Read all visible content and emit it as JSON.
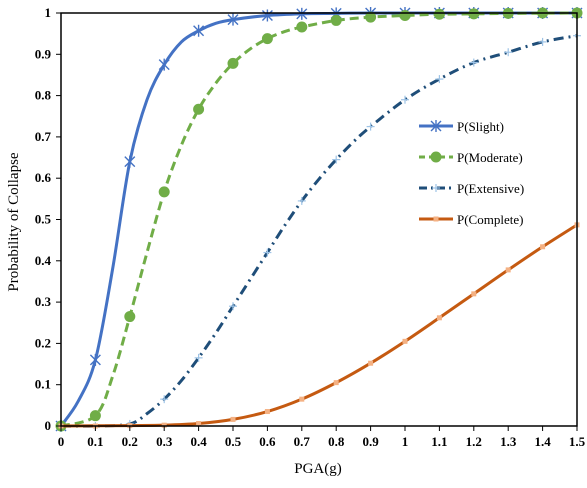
{
  "chart_data": {
    "type": "line",
    "title": "",
    "xlabel": "PGA(g)",
    "ylabel": "Probability of Collapse",
    "xlim": [
      0,
      1.5
    ],
    "ylim": [
      0,
      1
    ],
    "x_ticks": [
      "0",
      "0.1",
      "0.2",
      "0.3",
      "0.4",
      "0.5",
      "0.6",
      "0.7",
      "0.8",
      "0.9",
      "1",
      "1.1",
      "1.2",
      "1.3",
      "1.4",
      "1.5"
    ],
    "y_ticks": [
      "0",
      "0.1",
      "0.2",
      "0.3",
      "0.4",
      "0.5",
      "0.6",
      "0.7",
      "0.8",
      "0.9",
      "1"
    ],
    "grid": false,
    "legend_position": "right",
    "x": [
      0,
      0.1,
      0.2,
      0.3,
      0.4,
      0.5,
      0.6,
      0.7,
      0.8,
      0.9,
      1.0,
      1.1,
      1.2,
      1.3,
      1.4,
      1.5
    ],
    "series": [
      {
        "name": "P(Slight)",
        "color": "#4472C4",
        "dash": "solid",
        "marker": "asterisk",
        "values": [
          0,
          0.16,
          0.64,
          0.875,
          0.957,
          0.984,
          0.994,
          0.998,
          0.999,
          1.0,
          1.0,
          1.0,
          1.0,
          1.0,
          1.0,
          1.0
        ],
        "curve": [
          [
            0,
            0
          ],
          [
            0.05,
            0.06
          ],
          [
            0.1,
            0.16
          ],
          [
            0.15,
            0.38
          ],
          [
            0.2,
            0.64
          ],
          [
            0.25,
            0.79
          ],
          [
            0.3,
            0.875
          ],
          [
            0.35,
            0.93
          ],
          [
            0.4,
            0.957
          ],
          [
            0.45,
            0.975
          ],
          [
            0.5,
            0.984
          ],
          [
            0.6,
            0.994
          ],
          [
            0.7,
            0.998
          ],
          [
            0.8,
            0.999
          ],
          [
            0.9,
            1.0
          ],
          [
            1.5,
            1.0
          ]
        ]
      },
      {
        "name": "P(Moderate)",
        "color": "#70AD47",
        "dash": "dashed",
        "marker": "circle",
        "values": [
          0,
          0.025,
          0.265,
          0.567,
          0.767,
          0.878,
          0.938,
          0.966,
          0.982,
          0.99,
          0.994,
          0.997,
          0.998,
          0.999,
          1.0,
          1.0
        ],
        "curve": [
          [
            0,
            0
          ],
          [
            0.1,
            0.025
          ],
          [
            0.15,
            0.12
          ],
          [
            0.2,
            0.265
          ],
          [
            0.25,
            0.42
          ],
          [
            0.3,
            0.567
          ],
          [
            0.35,
            0.68
          ],
          [
            0.4,
            0.767
          ],
          [
            0.45,
            0.83
          ],
          [
            0.5,
            0.878
          ],
          [
            0.55,
            0.913
          ],
          [
            0.6,
            0.938
          ],
          [
            0.65,
            0.955
          ],
          [
            0.7,
            0.966
          ],
          [
            0.8,
            0.982
          ],
          [
            0.9,
            0.99
          ],
          [
            1.0,
            0.994
          ],
          [
            1.1,
            0.997
          ],
          [
            1.2,
            0.998
          ],
          [
            1.3,
            0.999
          ],
          [
            1.5,
            1.0
          ]
        ]
      },
      {
        "name": "P(Extensive)",
        "color": "#1F4E79",
        "dash": "dashdot",
        "marker": "plus",
        "values": [
          0,
          0,
          0.005,
          0.065,
          0.165,
          0.29,
          0.42,
          0.545,
          0.645,
          0.725,
          0.79,
          0.84,
          0.88,
          0.905,
          0.93,
          0.945
        ],
        "curve": [
          [
            0,
            0
          ],
          [
            0.1,
            0
          ],
          [
            0.2,
            0.005
          ],
          [
            0.25,
            0.03
          ],
          [
            0.3,
            0.065
          ],
          [
            0.35,
            0.11
          ],
          [
            0.4,
            0.165
          ],
          [
            0.45,
            0.225
          ],
          [
            0.5,
            0.29
          ],
          [
            0.55,
            0.355
          ],
          [
            0.6,
            0.42
          ],
          [
            0.65,
            0.485
          ],
          [
            0.7,
            0.545
          ],
          [
            0.75,
            0.598
          ],
          [
            0.8,
            0.645
          ],
          [
            0.85,
            0.688
          ],
          [
            0.9,
            0.725
          ],
          [
            1.0,
            0.79
          ],
          [
            1.1,
            0.84
          ],
          [
            1.2,
            0.88
          ],
          [
            1.3,
            0.905
          ],
          [
            1.4,
            0.93
          ],
          [
            1.5,
            0.945
          ]
        ]
      },
      {
        "name": "P(Complete)",
        "color": "#C55A11",
        "dash": "solid",
        "marker": "square",
        "values": [
          0,
          0,
          0.001,
          0.002,
          0.006,
          0.016,
          0.035,
          0.065,
          0.105,
          0.152,
          0.205,
          0.262,
          0.32,
          0.378,
          0.434,
          0.487
        ],
        "curve": [
          [
            0,
            0
          ],
          [
            0.2,
            0.001
          ],
          [
            0.3,
            0.002
          ],
          [
            0.4,
            0.006
          ],
          [
            0.5,
            0.016
          ],
          [
            0.6,
            0.035
          ],
          [
            0.7,
            0.065
          ],
          [
            0.8,
            0.105
          ],
          [
            0.9,
            0.152
          ],
          [
            1.0,
            0.205
          ],
          [
            1.1,
            0.262
          ],
          [
            1.2,
            0.32
          ],
          [
            1.3,
            0.378
          ],
          [
            1.4,
            0.434
          ],
          [
            1.5,
            0.487
          ]
        ]
      }
    ]
  }
}
